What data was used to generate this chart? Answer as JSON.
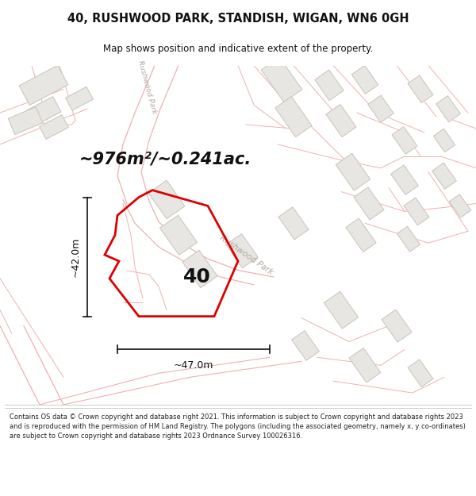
{
  "title_line1": "40, RUSHWOOD PARK, STANDISH, WIGAN, WN6 0GH",
  "title_line2": "Map shows position and indicative extent of the property.",
  "area_label": "~976m²/~0.241ac.",
  "width_label": "~47.0m",
  "height_label": "~42.0m",
  "number_label": "40",
  "road_label": "Rushwood Park",
  "road_label_upper": "Rushwood Park",
  "footer_text": "Contains OS data © Crown copyright and database right 2021. This information is subject to Crown copyright and database rights 2023 and is reproduced with the permission of HM Land Registry. The polygons (including the associated geometry, namely x, y co-ordinates) are subject to Crown copyright and database rights 2023 Ordnance Survey 100026316.",
  "bg_color": "#ffffff",
  "plot_outline_color": "#dd0000",
  "road_line_color": "#f0b0b0",
  "building_fill": "#e8e6e2",
  "building_outline": "#c8c4bc",
  "dim_line_color": "#111111",
  "text_color": "#111111",
  "footer_color": "#222222",
  "road_label_color": "#b0a8a0",
  "title_sep_color": "#cccccc"
}
